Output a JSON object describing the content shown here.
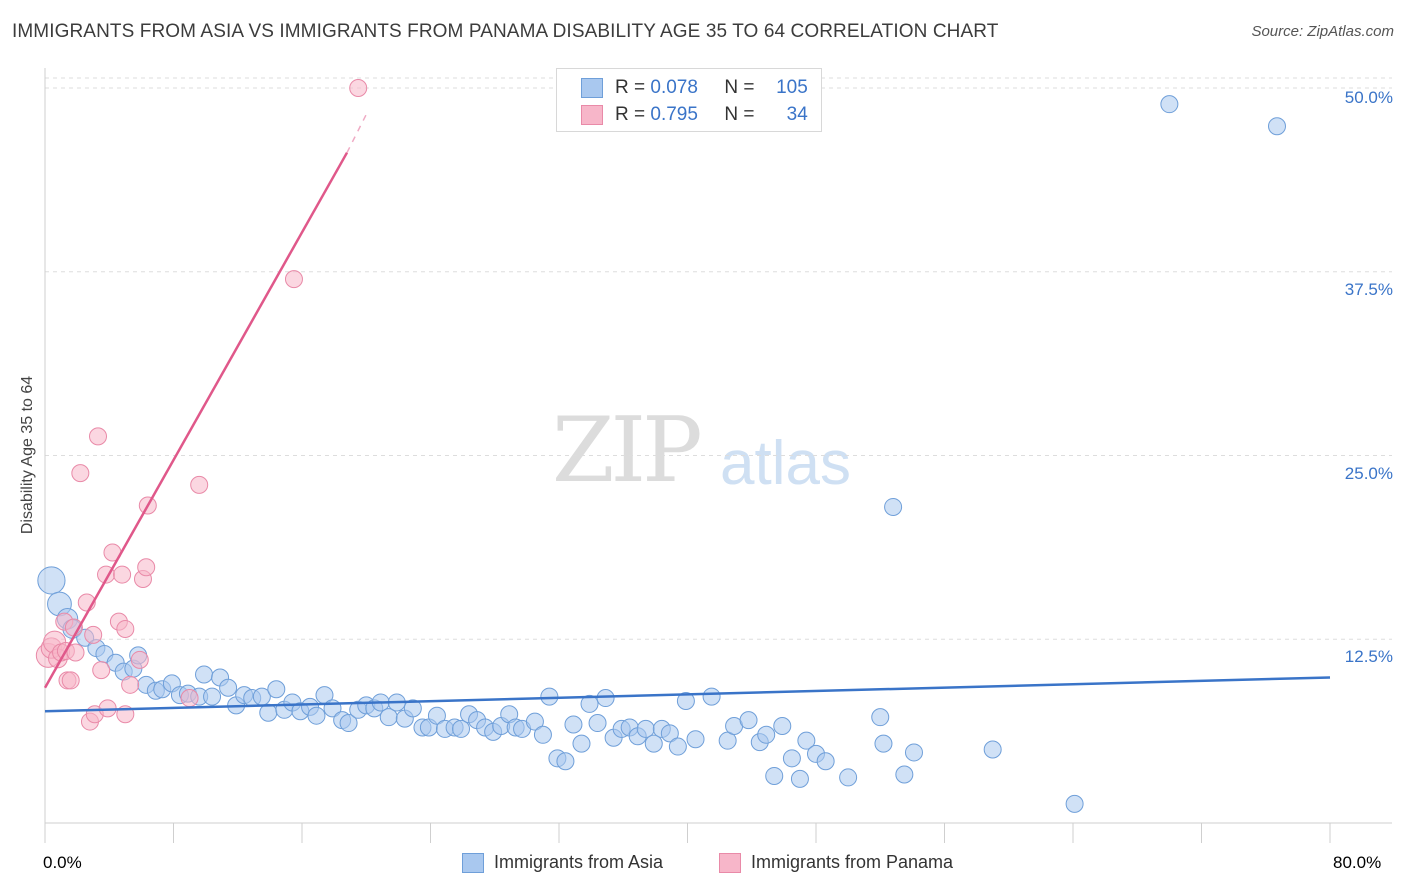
{
  "header": {
    "title": "IMMIGRANTS FROM ASIA VS IMMIGRANTS FROM PANAMA DISABILITY AGE 35 TO 64 CORRELATION CHART",
    "source": "Source: ZipAtlas.com"
  },
  "watermark": {
    "zip": "ZIP",
    "atlas": "atlas"
  },
  "legend": {
    "r_label": "R =",
    "n_label": "N =",
    "rows": [
      {
        "r": "0.078",
        "n": "105"
      },
      {
        "r": "0.795",
        "n": "34"
      }
    ]
  },
  "colors": {
    "asia_fill": "#a9c8ef",
    "asia_stroke": "#6f9fd9",
    "asia_line": "#3a74c8",
    "panama_fill": "#f7b6c9",
    "panama_stroke": "#e98aa8",
    "panama_line": "#e0588a",
    "tick_blue": "#3a74c8",
    "grid": "#dddddd"
  },
  "chart_data": {
    "type": "scatter",
    "title": "IMMIGRANTS FROM ASIA VS IMMIGRANTS FROM PANAMA DISABILITY AGE 35 TO 64 CORRELATION CHART",
    "xlabel": "",
    "ylabel": "Disability Age 35 to 64",
    "xlim": [
      0,
      80
    ],
    "ylim": [
      0,
      50
    ],
    "x_tick_labels": [
      "0.0%",
      "80.0%"
    ],
    "y_ticks": [
      12.5,
      25.0,
      37.5,
      50.0
    ],
    "y_tick_labels": [
      "12.5%",
      "25.0%",
      "37.5%",
      "50.0%"
    ],
    "legend_position": "bottom",
    "series": [
      {
        "name": "Immigrants from Asia",
        "R": 0.078,
        "N": 105,
        "trend": {
          "x0": 0,
          "y0": 7.6,
          "x1": 80,
          "y1": 9.9
        },
        "points": [
          [
            0.4,
            16.5,
            1.6
          ],
          [
            0.9,
            14.9,
            1.4
          ],
          [
            1.4,
            13.9,
            1.2
          ],
          [
            1.7,
            13.2,
            1.1
          ],
          [
            2.5,
            12.6,
            1.0
          ],
          [
            3.2,
            11.9,
            1.0
          ],
          [
            3.7,
            11.5,
            1.0
          ],
          [
            4.4,
            10.9,
            1.0
          ],
          [
            4.9,
            10.3,
            1.0
          ],
          [
            5.5,
            10.5,
            1.0
          ],
          [
            5.8,
            11.4,
            1.0
          ],
          [
            6.3,
            9.4,
            1.0
          ],
          [
            6.9,
            9.0,
            1.0
          ],
          [
            7.3,
            9.1,
            1.0
          ],
          [
            7.9,
            9.5,
            1.0
          ],
          [
            8.4,
            8.7,
            1.0
          ],
          [
            8.9,
            8.8,
            1.0
          ],
          [
            9.6,
            8.6,
            1.0
          ],
          [
            9.9,
            10.1,
            1.0
          ],
          [
            10.4,
            8.6,
            1.0
          ],
          [
            10.9,
            9.9,
            1.0
          ],
          [
            11.4,
            9.2,
            1.0
          ],
          [
            11.9,
            8.0,
            1.0
          ],
          [
            12.4,
            8.7,
            1.0
          ],
          [
            12.9,
            8.5,
            1.0
          ],
          [
            13.5,
            8.6,
            1.0
          ],
          [
            13.9,
            7.5,
            1.0
          ],
          [
            14.4,
            9.1,
            1.0
          ],
          [
            14.9,
            7.7,
            1.0
          ],
          [
            15.4,
            8.2,
            1.0
          ],
          [
            15.9,
            7.6,
            1.0
          ],
          [
            16.5,
            7.9,
            1.0
          ],
          [
            16.9,
            7.3,
            1.0
          ],
          [
            17.4,
            8.7,
            1.0
          ],
          [
            17.9,
            7.8,
            1.0
          ],
          [
            18.5,
            7.0,
            1.0
          ],
          [
            18.9,
            6.8,
            1.0
          ],
          [
            19.5,
            7.7,
            1.0
          ],
          [
            20.0,
            8.0,
            1.0
          ],
          [
            20.5,
            7.8,
            1.0
          ],
          [
            20.9,
            8.2,
            1.0
          ],
          [
            21.4,
            7.2,
            1.0
          ],
          [
            21.9,
            8.2,
            1.0
          ],
          [
            22.4,
            7.1,
            1.0
          ],
          [
            22.9,
            7.8,
            1.0
          ],
          [
            23.5,
            6.5,
            1.0
          ],
          [
            23.9,
            6.5,
            1.0
          ],
          [
            24.4,
            7.3,
            1.0
          ],
          [
            24.9,
            6.4,
            1.0
          ],
          [
            25.5,
            6.5,
            1.0
          ],
          [
            25.9,
            6.4,
            1.0
          ],
          [
            26.4,
            7.4,
            1.0
          ],
          [
            26.9,
            7.0,
            1.0
          ],
          [
            27.4,
            6.5,
            1.0
          ],
          [
            27.9,
            6.2,
            1.0
          ],
          [
            28.4,
            6.6,
            1.0
          ],
          [
            28.9,
            7.4,
            1.0
          ],
          [
            29.3,
            6.5,
            1.0
          ],
          [
            29.7,
            6.4,
            1.0
          ],
          [
            30.5,
            6.9,
            1.0
          ],
          [
            31.0,
            6.0,
            1.0
          ],
          [
            31.4,
            8.6,
            1.0
          ],
          [
            31.9,
            4.4,
            1.0
          ],
          [
            32.4,
            4.2,
            1.0
          ],
          [
            32.9,
            6.7,
            1.0
          ],
          [
            33.4,
            5.4,
            1.0
          ],
          [
            33.9,
            8.1,
            1.0
          ],
          [
            34.4,
            6.8,
            1.0
          ],
          [
            34.9,
            8.5,
            1.0
          ],
          [
            35.4,
            5.8,
            1.0
          ],
          [
            35.9,
            6.4,
            1.0
          ],
          [
            36.4,
            6.5,
            1.0
          ],
          [
            36.9,
            5.9,
            1.0
          ],
          [
            37.4,
            6.4,
            1.0
          ],
          [
            37.9,
            5.4,
            1.0
          ],
          [
            38.4,
            6.4,
            1.0
          ],
          [
            38.9,
            6.1,
            1.0
          ],
          [
            39.4,
            5.2,
            1.0
          ],
          [
            39.9,
            8.3,
            1.0
          ],
          [
            40.5,
            5.7,
            1.0
          ],
          [
            41.5,
            8.6,
            1.0
          ],
          [
            42.5,
            5.6,
            1.0
          ],
          [
            42.9,
            6.6,
            1.0
          ],
          [
            43.8,
            7.0,
            1.0
          ],
          [
            44.5,
            5.5,
            1.0
          ],
          [
            44.9,
            6.0,
            1.0
          ],
          [
            45.4,
            3.2,
            1.0
          ],
          [
            45.9,
            6.6,
            1.0
          ],
          [
            46.5,
            4.4,
            1.0
          ],
          [
            47.0,
            3.0,
            1.0
          ],
          [
            47.4,
            5.6,
            1.0
          ],
          [
            48.0,
            4.7,
            1.0
          ],
          [
            48.6,
            4.2,
            1.0
          ],
          [
            50.0,
            3.1,
            1.0
          ],
          [
            52.0,
            7.2,
            1.0
          ],
          [
            52.2,
            5.4,
            1.0
          ],
          [
            52.8,
            21.5,
            1.0
          ],
          [
            53.5,
            3.3,
            1.0
          ],
          [
            54.1,
            4.8,
            1.0
          ],
          [
            59.0,
            5.0,
            1.0
          ],
          [
            64.1,
            1.3,
            1.0
          ],
          [
            70.0,
            48.9,
            1.0
          ],
          [
            76.7,
            47.4,
            1.0
          ]
        ]
      },
      {
        "name": "Immigrants from Panama",
        "R": 0.795,
        "N": 34,
        "trend": {
          "x0": 0,
          "y0": 9.2,
          "x1": 18.8,
          "y1": 45.6
        },
        "trend_dashed": {
          "x0": 18.8,
          "y0": 45.6,
          "x1": 20.0,
          "y1": 48.2
        },
        "points": [
          [
            0.2,
            11.4,
            1.4
          ],
          [
            0.4,
            11.9,
            1.2
          ],
          [
            0.6,
            12.3,
            1.3
          ],
          [
            0.8,
            11.2,
            1.1
          ],
          [
            1.0,
            11.6,
            1.0
          ],
          [
            1.2,
            13.7,
            1.0
          ],
          [
            1.3,
            11.7,
            1.0
          ],
          [
            1.4,
            9.7,
            1.0
          ],
          [
            1.6,
            9.7,
            1.0
          ],
          [
            1.8,
            13.3,
            1.0
          ],
          [
            1.9,
            11.6,
            1.0
          ],
          [
            2.2,
            23.8,
            1.0
          ],
          [
            2.6,
            15.0,
            1.0
          ],
          [
            2.8,
            6.9,
            1.0
          ],
          [
            3.0,
            12.8,
            1.0
          ],
          [
            3.1,
            7.4,
            1.0
          ],
          [
            3.3,
            26.3,
            1.0
          ],
          [
            3.5,
            10.4,
            1.0
          ],
          [
            3.8,
            16.9,
            1.0
          ],
          [
            3.9,
            7.8,
            1.0
          ],
          [
            4.2,
            18.4,
            1.0
          ],
          [
            4.6,
            13.7,
            1.0
          ],
          [
            4.8,
            16.9,
            1.0
          ],
          [
            5.0,
            13.2,
            1.0
          ],
          [
            5.0,
            7.4,
            1.0
          ],
          [
            5.3,
            9.4,
            1.0
          ],
          [
            5.9,
            11.1,
            1.0
          ],
          [
            6.1,
            16.6,
            1.0
          ],
          [
            6.3,
            17.4,
            1.0
          ],
          [
            6.4,
            21.6,
            1.0
          ],
          [
            9.0,
            8.5,
            1.0
          ],
          [
            9.6,
            23.0,
            1.0
          ],
          [
            15.5,
            37.0,
            1.0
          ],
          [
            19.5,
            50.0,
            1.0
          ]
        ]
      }
    ]
  },
  "bottom_legend": [
    "Immigrants from Asia",
    "Immigrants from Panama"
  ]
}
